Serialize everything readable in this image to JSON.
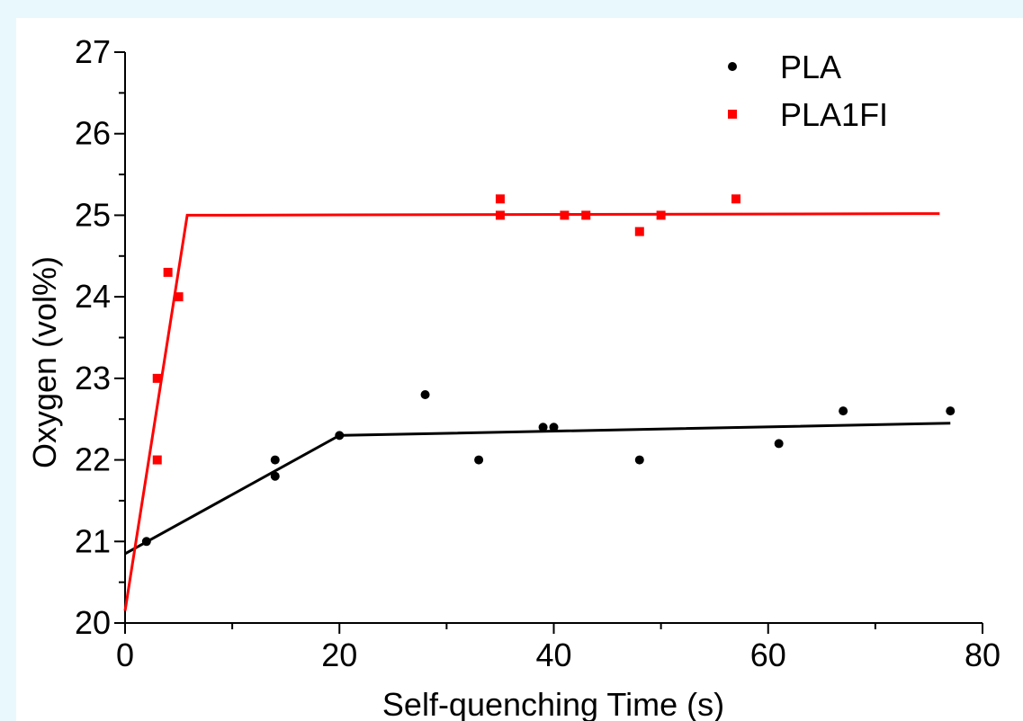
{
  "chart_data": {
    "type": "scatter",
    "xlabel": "Self-quenching Time  (s)",
    "ylabel": "Oxygen (vol%)",
    "xlim": [
      0,
      80
    ],
    "ylim": [
      20,
      27
    ],
    "xticks": [
      "0",
      "20",
      "40",
      "60",
      "80"
    ],
    "yticks": [
      "20",
      "21",
      "22",
      "23",
      "24",
      "25",
      "26",
      "27"
    ],
    "legend_position": "top-right",
    "series": [
      {
        "name": "PLA",
        "color": "#000000",
        "marker": "circle",
        "points": [
          [
            2,
            21.0
          ],
          [
            14,
            22.0
          ],
          [
            14,
            21.8
          ],
          [
            20,
            22.3
          ],
          [
            28,
            22.8
          ],
          [
            33,
            22.0
          ],
          [
            39,
            22.4
          ],
          [
            40,
            22.4
          ],
          [
            48,
            22.0
          ],
          [
            61,
            22.2
          ],
          [
            67,
            22.6
          ],
          [
            77,
            22.6
          ]
        ],
        "fit_line": [
          [
            0,
            20.85
          ],
          [
            20,
            22.3
          ],
          [
            77,
            22.45
          ]
        ]
      },
      {
        "name": "PLA1FI",
        "color": "#ff0000",
        "marker": "square",
        "points": [
          [
            3,
            22.0
          ],
          [
            3,
            23.0
          ],
          [
            4,
            24.3
          ],
          [
            5,
            24.0
          ],
          [
            35,
            25.2
          ],
          [
            35,
            25.0
          ],
          [
            41,
            25.0
          ],
          [
            43,
            25.0
          ],
          [
            48,
            24.8
          ],
          [
            50,
            25.0
          ],
          [
            57,
            25.2
          ]
        ],
        "fit_line": [
          [
            0,
            20.15
          ],
          [
            5.8,
            25.0
          ],
          [
            76,
            25.02
          ]
        ]
      }
    ]
  }
}
